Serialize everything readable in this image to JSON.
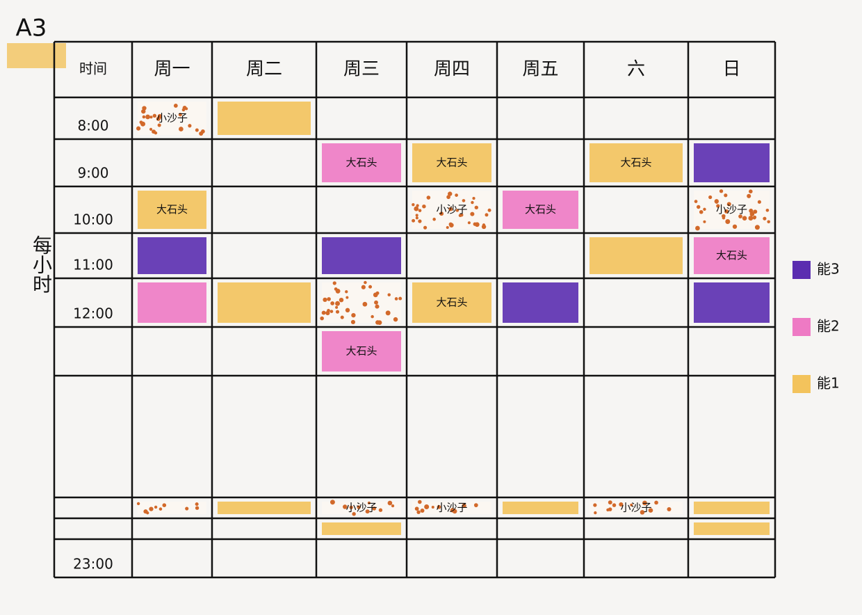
{
  "page_label": "A3",
  "side_label": "每小时",
  "table": {
    "header": [
      "时间",
      "周一",
      "周二",
      "周三",
      "周四",
      "周五",
      "六",
      "日"
    ],
    "rows": [
      {
        "time": "8:00",
        "cells": [
          {
            "color": "#d2692a",
            "pattern": "dots",
            "text": "小沙子"
          },
          {
            "color": "#f3c35c"
          },
          null,
          null,
          null,
          null,
          null
        ]
      },
      {
        "time": "9:00",
        "cells": [
          null,
          null,
          {
            "color": "#ee7ac4",
            "text": "大石头"
          },
          {
            "color": "#f3c35c",
            "text": "大石头"
          },
          null,
          {
            "color": "#f3c35c",
            "text": "大石头"
          },
          {
            "color": "#5b2db0"
          }
        ]
      },
      {
        "time": "10:00",
        "cells": [
          {
            "color": "#f3c35c",
            "text": "大石头"
          },
          null,
          null,
          {
            "color": "#d2692a",
            "pattern": "dots",
            "text": "小沙子"
          },
          {
            "color": "#ee7ac4",
            "text": "大石头"
          },
          null,
          {
            "color": "#d2692a",
            "pattern": "dots",
            "text": "小沙子"
          }
        ]
      },
      {
        "time": "11:00",
        "cells": [
          {
            "color": "#5b2db0"
          },
          null,
          {
            "color": "#5b2db0"
          },
          null,
          null,
          {
            "color": "#f3c35c"
          },
          {
            "color": "#ee7ac4",
            "text": "大石头"
          }
        ]
      },
      {
        "time": "12:00",
        "cells": [
          {
            "color": "#ee7ac4"
          },
          {
            "color": "#f3c35c"
          },
          {
            "color": "#d2692a",
            "pattern": "dots"
          },
          {
            "color": "#f3c35c",
            "text": "大石头"
          },
          {
            "color": "#5b2db0"
          },
          null,
          {
            "color": "#5b2db0"
          }
        ]
      },
      {
        "time": null,
        "cells": [
          null,
          null,
          {
            "color": "#ee7ac4",
            "text": "大石头"
          },
          null,
          null,
          null,
          null
        ]
      },
      {
        "time": null,
        "cells": [
          null,
          null,
          null,
          null,
          null,
          null,
          null
        ]
      },
      {
        "time": null,
        "cells": [
          {
            "color": "#d2692a",
            "pattern": "dots"
          },
          {
            "color": "#f3c35c"
          },
          {
            "color": "#d2692a",
            "pattern": "dots",
            "text": "小沙子"
          },
          {
            "color": "#d2692a",
            "pattern": "dots",
            "text": "小沙子"
          },
          {
            "color": "#f3c35c"
          },
          {
            "color": "#d2692a",
            "pattern": "dots",
            "text": "小沙子"
          },
          {
            "color": "#f3c35c"
          }
        ]
      },
      {
        "time": null,
        "cells": [
          null,
          null,
          {
            "color": "#f3c35c"
          },
          null,
          null,
          null,
          {
            "color": "#f3c35c"
          }
        ]
      },
      {
        "time": "23:00",
        "cells": [
          null,
          null,
          null,
          null,
          null,
          null,
          null
        ]
      }
    ]
  },
  "legend": [
    {
      "label": "能3",
      "color": "#5b2db0"
    },
    {
      "label": "能2",
      "color": "#ee7ac4"
    },
    {
      "label": "能1",
      "color": "#f3c35c"
    }
  ]
}
